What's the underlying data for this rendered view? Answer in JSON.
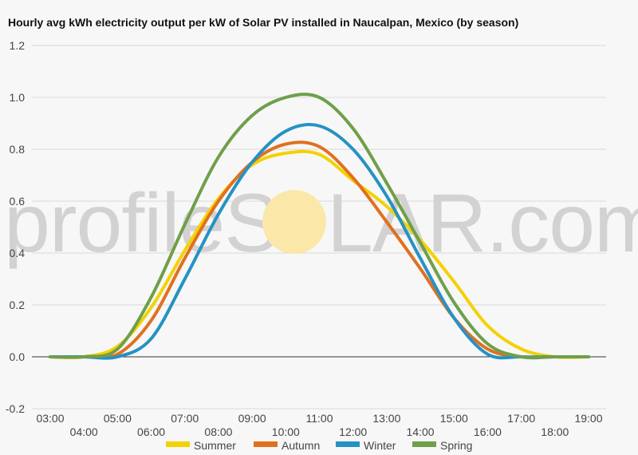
{
  "watermark": {
    "text_left": "profileS",
    "text_right": "LAR.com",
    "sun_color": "#fbe7a8"
  },
  "chart_data": {
    "type": "line",
    "title": "Hourly avg kWh electricity output per kW of Solar PV installed in Naucalpan, Mexico (by season)",
    "xlabel": "",
    "ylabel": "",
    "x": [
      "03:00",
      "04:00",
      "05:00",
      "06:00",
      "07:00",
      "08:00",
      "09:00",
      "10:00",
      "11:00",
      "12:00",
      "13:00",
      "14:00",
      "15:00",
      "16:00",
      "17:00",
      "18:00",
      "19:00"
    ],
    "ylim": [
      -0.2,
      1.2
    ],
    "yticks": [
      "-0.2",
      "0.0",
      "0.2",
      "0.4",
      "0.6",
      "0.8",
      "1.0",
      "1.2"
    ],
    "ytick_values": [
      -0.2,
      0.0,
      0.2,
      0.4,
      0.6,
      0.8,
      1.0,
      1.2
    ],
    "grid": true,
    "legend": "bottom",
    "series": [
      {
        "name": "Summer",
        "color": "#f4d100",
        "values": [
          0,
          0,
          0.04,
          0.19,
          0.41,
          0.61,
          0.74,
          0.785,
          0.78,
          0.68,
          0.58,
          0.45,
          0.29,
          0.12,
          0.03,
          0,
          0
        ]
      },
      {
        "name": "Autumn",
        "color": "#e07020",
        "values": [
          0,
          0,
          0.01,
          0.14,
          0.38,
          0.6,
          0.75,
          0.82,
          0.81,
          0.69,
          0.52,
          0.34,
          0.15,
          0.03,
          0,
          0,
          0
        ]
      },
      {
        "name": "Winter",
        "color": "#2592c3",
        "values": [
          0,
          0,
          0,
          0.07,
          0.3,
          0.55,
          0.75,
          0.87,
          0.89,
          0.8,
          0.62,
          0.38,
          0.15,
          0.01,
          0,
          0,
          0
        ]
      },
      {
        "name": "Spring",
        "color": "#6f9f4a",
        "values": [
          0,
          0,
          0.03,
          0.23,
          0.51,
          0.77,
          0.93,
          1.0,
          1.0,
          0.88,
          0.67,
          0.44,
          0.21,
          0.05,
          0,
          0,
          0
        ]
      }
    ]
  }
}
